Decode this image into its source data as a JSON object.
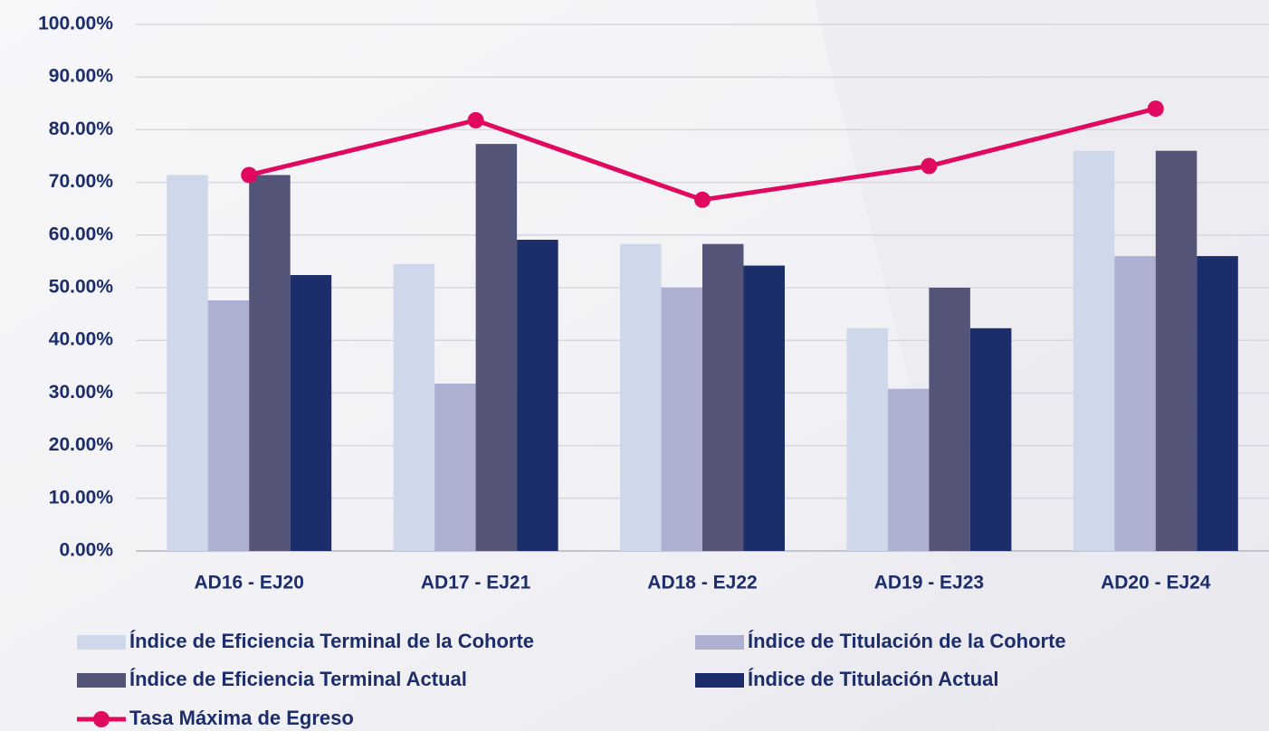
{
  "chart_data": {
    "type": "bar",
    "categories": [
      "AD16 - EJ20",
      "AD17 - EJ21",
      "AD18 - EJ22",
      "AD19 - EJ23",
      "AD20 - EJ24"
    ],
    "series": [
      {
        "name": "Índice de Eficiencia Terminal de la Cohorte",
        "color": "#cfd8ea",
        "values": [
          71.4,
          54.5,
          58.3,
          42.3,
          76.0
        ]
      },
      {
        "name": "Índice de Titulación de la Cohorte",
        "color": "#aeb0d2",
        "values": [
          47.6,
          31.8,
          50.0,
          30.8,
          56.0
        ]
      },
      {
        "name": "Índice de Eficiencia Terminal Actual",
        "color": "#545478",
        "values": [
          71.4,
          77.3,
          58.3,
          50.0,
          76.0
        ]
      },
      {
        "name": "Índice de Titulación Actual",
        "color": "#1b2d6b",
        "values": [
          52.4,
          59.1,
          54.2,
          42.3,
          56.0
        ]
      },
      {
        "name": "Tasa Máxima de Egreso",
        "color": "#e0095f",
        "type": "line",
        "values": [
          71.4,
          81.8,
          66.7,
          73.1,
          84.0
        ]
      }
    ],
    "ylim": [
      0,
      100
    ],
    "yticks": [
      {
        "value": 0,
        "label": "0.00%"
      },
      {
        "value": 10,
        "label": "10.00%"
      },
      {
        "value": 20,
        "label": "20.00%"
      },
      {
        "value": 30,
        "label": "30.00%"
      },
      {
        "value": 40,
        "label": "40.00%"
      },
      {
        "value": 50,
        "label": "50.00%"
      },
      {
        "value": 60,
        "label": "60.00%"
      },
      {
        "value": 70,
        "label": "70.00%"
      },
      {
        "value": 80,
        "label": "80.00%"
      },
      {
        "value": 90,
        "label": "90.00%"
      },
      {
        "value": 100,
        "label": "100.00%"
      }
    ],
    "grid": true
  }
}
